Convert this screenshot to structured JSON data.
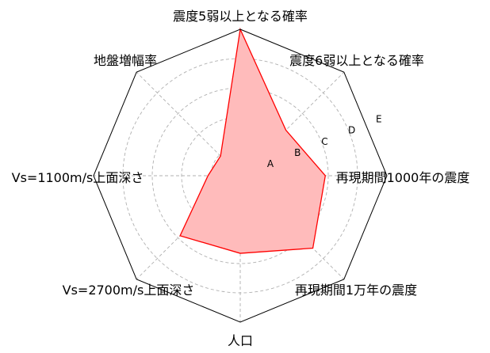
{
  "chart_data": {
    "type": "radar",
    "axes": [
      "震度5弱以上となる確率",
      "震度6弱以上となる確率",
      "再現期間1000年の震度",
      "再現期間1万年の震度",
      "人口",
      "Vs=2700m/s上面深さ",
      "Vs=1100m/s上面深さ",
      "地盤増幅率"
    ],
    "ring_labels": [
      "A",
      "B",
      "C",
      "D",
      "E"
    ],
    "rmax": 5,
    "grid": true,
    "series": [
      {
        "values": [
          5.0,
          2.2,
          2.9,
          3.5,
          2.65,
          2.9,
          1.1,
          0.95
        ],
        "line_color": "#ff0000",
        "fill_color": "#ffbbbb"
      }
    ]
  }
}
